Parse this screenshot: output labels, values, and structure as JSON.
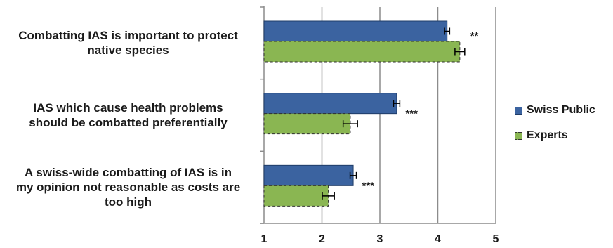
{
  "chart_data": {
    "type": "bar",
    "orientation": "horizontal",
    "categories": [
      "Combatting IAS is important to protect\nnative species",
      "IAS which cause health problems\nshould be combatted preferentially",
      "A swiss-wide combatting of IAS is in\nmy opinion not reasonable as costs are\ntoo high"
    ],
    "series": [
      {
        "name": "Swiss Public",
        "values": [
          4.16,
          3.29,
          2.54
        ],
        "errors": [
          0.02,
          0.03,
          0.03
        ],
        "color": "#3b63a0",
        "edge": "#1f3c68"
      },
      {
        "name": "Experts",
        "values": [
          4.38,
          2.49,
          2.11
        ],
        "errors": [
          0.06,
          0.1,
          0.08
        ],
        "color": "#8ab652",
        "edge": "#333333"
      }
    ],
    "significance": [
      "**",
      "***",
      "***"
    ],
    "xlim": [
      1,
      5
    ],
    "xticks": [
      "1",
      "2",
      "3",
      "4",
      "5"
    ],
    "grid": true,
    "legend_position": "right"
  }
}
